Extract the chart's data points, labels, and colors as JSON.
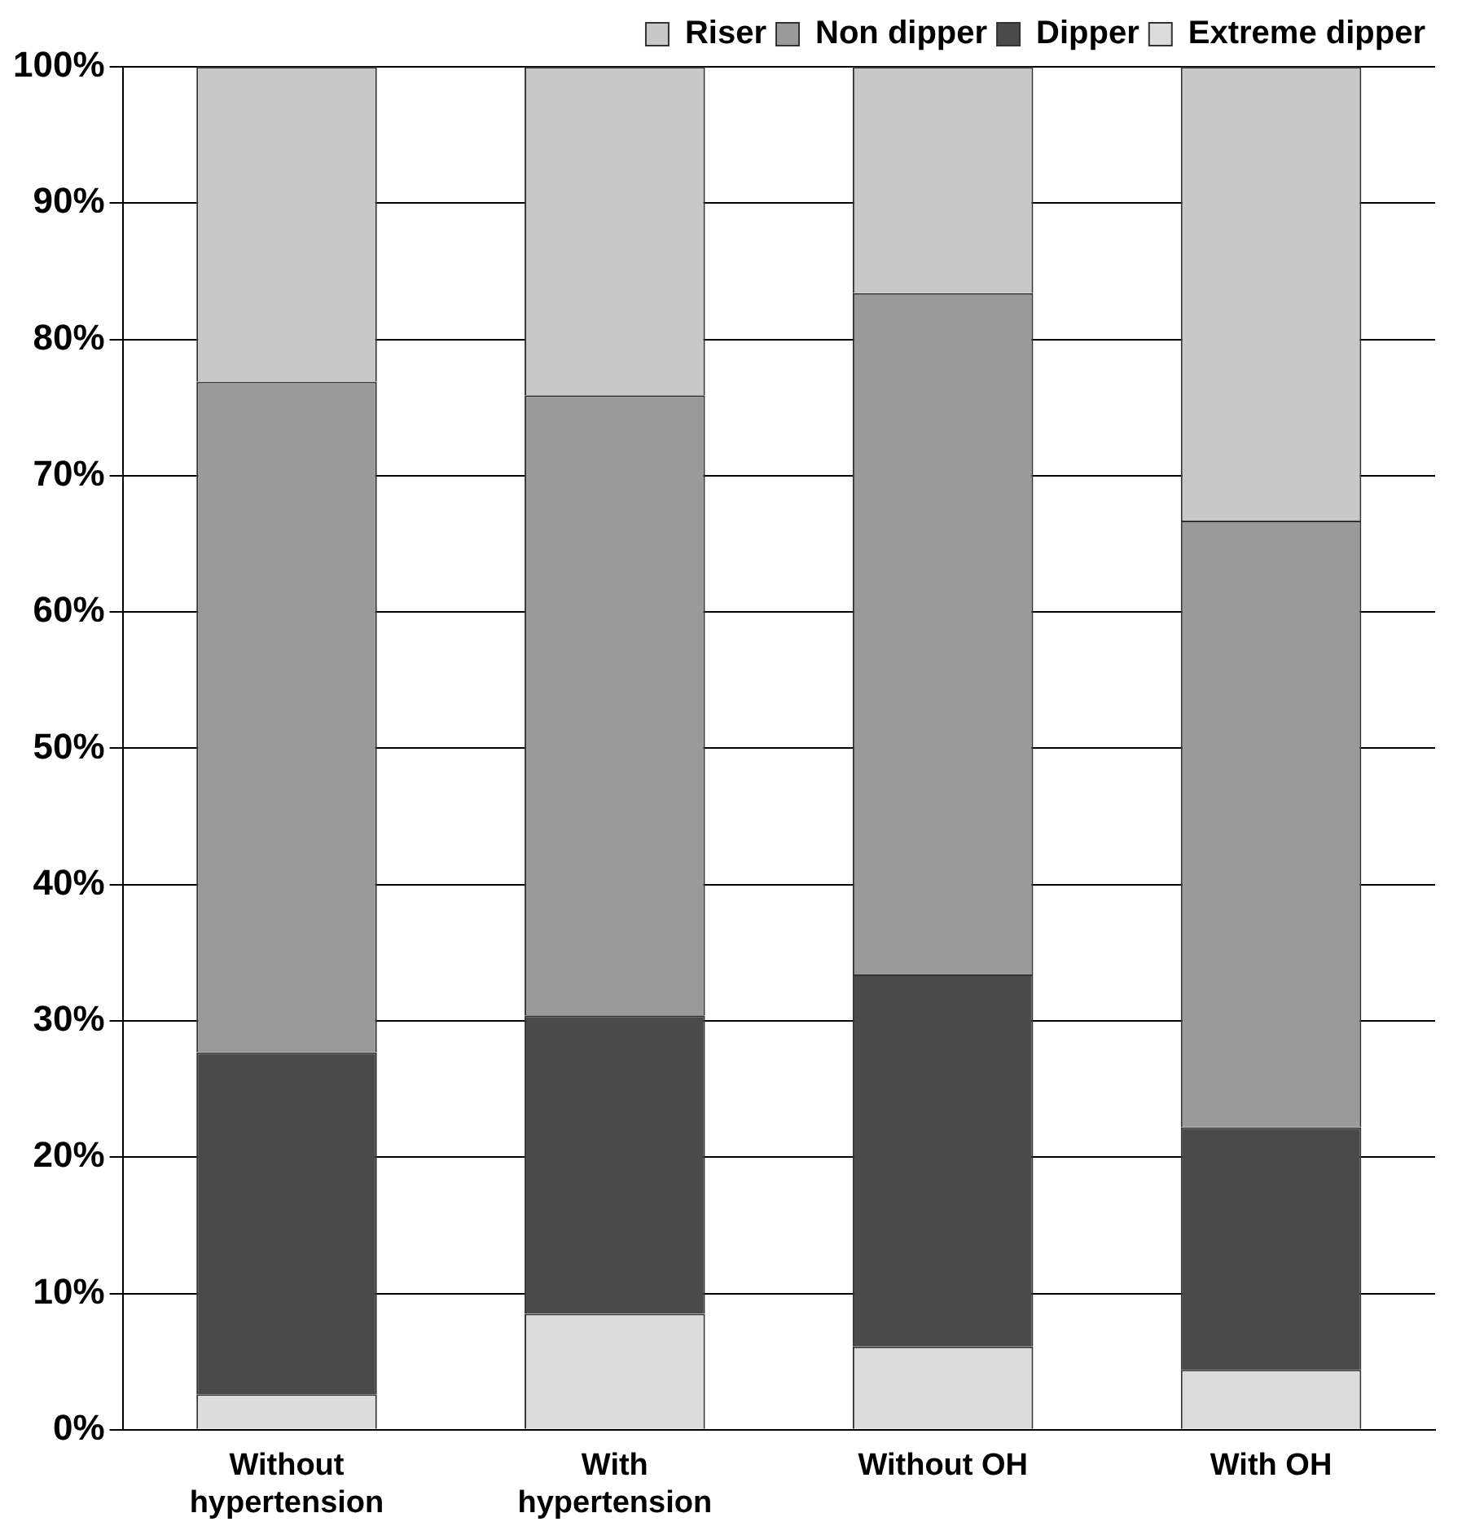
{
  "chart_data": {
    "type": "bar",
    "stacked": true,
    "categories": [
      "Without hypertension",
      "With hypertension",
      "Without OH",
      "With OH"
    ],
    "series": [
      {
        "name": "Extreme dipper",
        "color": "#dcdcdc",
        "values": [
          2.6,
          8.5,
          6.1,
          4.4
        ]
      },
      {
        "name": "Dipper",
        "color": "#4a4a4a",
        "values": [
          25.1,
          21.9,
          27.3,
          17.8
        ]
      },
      {
        "name": "Non dipper",
        "color": "#9a9a9a",
        "values": [
          49.2,
          45.5,
          50.0,
          44.5
        ]
      },
      {
        "name": "Riser",
        "color": "#c8c8c8",
        "values": [
          23.1,
          24.1,
          16.6,
          33.3
        ]
      }
    ],
    "ylim": [
      0,
      100
    ],
    "yticks": [
      {
        "value": 0,
        "label": "0%"
      },
      {
        "value": 10,
        "label": "10%"
      },
      {
        "value": 20,
        "label": "20%"
      },
      {
        "value": 30,
        "label": "30%"
      },
      {
        "value": 40,
        "label": "40%"
      },
      {
        "value": 50,
        "label": "50%"
      },
      {
        "value": 60,
        "label": "60%"
      },
      {
        "value": 70,
        "label": "70%"
      },
      {
        "value": 80,
        "label": "80%"
      },
      {
        "value": 90,
        "label": "90%"
      },
      {
        "value": 100,
        "label": "100%"
      }
    ],
    "grid": "y",
    "legend": "top right"
  }
}
